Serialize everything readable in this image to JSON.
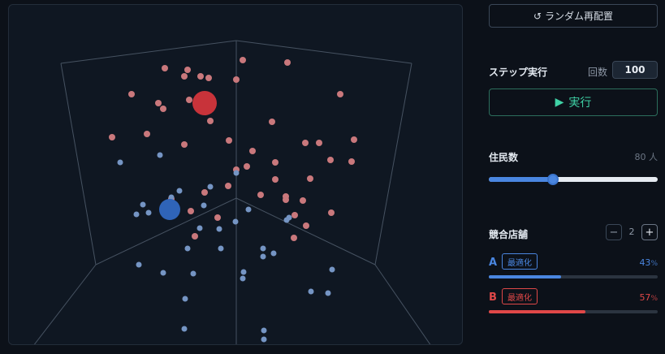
{
  "controls": {
    "shuffle_icon": "↺",
    "shuffle_label": "ランダム再配置",
    "step_label": "ステップ実行",
    "count_label": "回数",
    "count_value": "100",
    "run_icon": "▶",
    "run_label": "実行",
    "residents_label": "住民数",
    "residents_value": "80 人",
    "residents_level": 0.38,
    "stores_label": "競合店舗",
    "minus_symbol": "−",
    "plus_symbol": "+",
    "stores_count": "2"
  },
  "stores": [
    {
      "letter": "A",
      "optimize_label": "最適化",
      "percent": "43",
      "unit": "%",
      "share": 0.43,
      "color": "#4a86e0"
    },
    {
      "letter": "B",
      "optimize_label": "最適化",
      "percent": "57",
      "unit": "%",
      "share": 0.57,
      "color": "#e04848"
    }
  ],
  "scene": {
    "edge_color": "#465261",
    "red_store_color": "#c8333a",
    "blue_store_color": "#2f64b8",
    "red_resident_color": "#c9787c",
    "blue_resident_color": "#7595c4"
  }
}
